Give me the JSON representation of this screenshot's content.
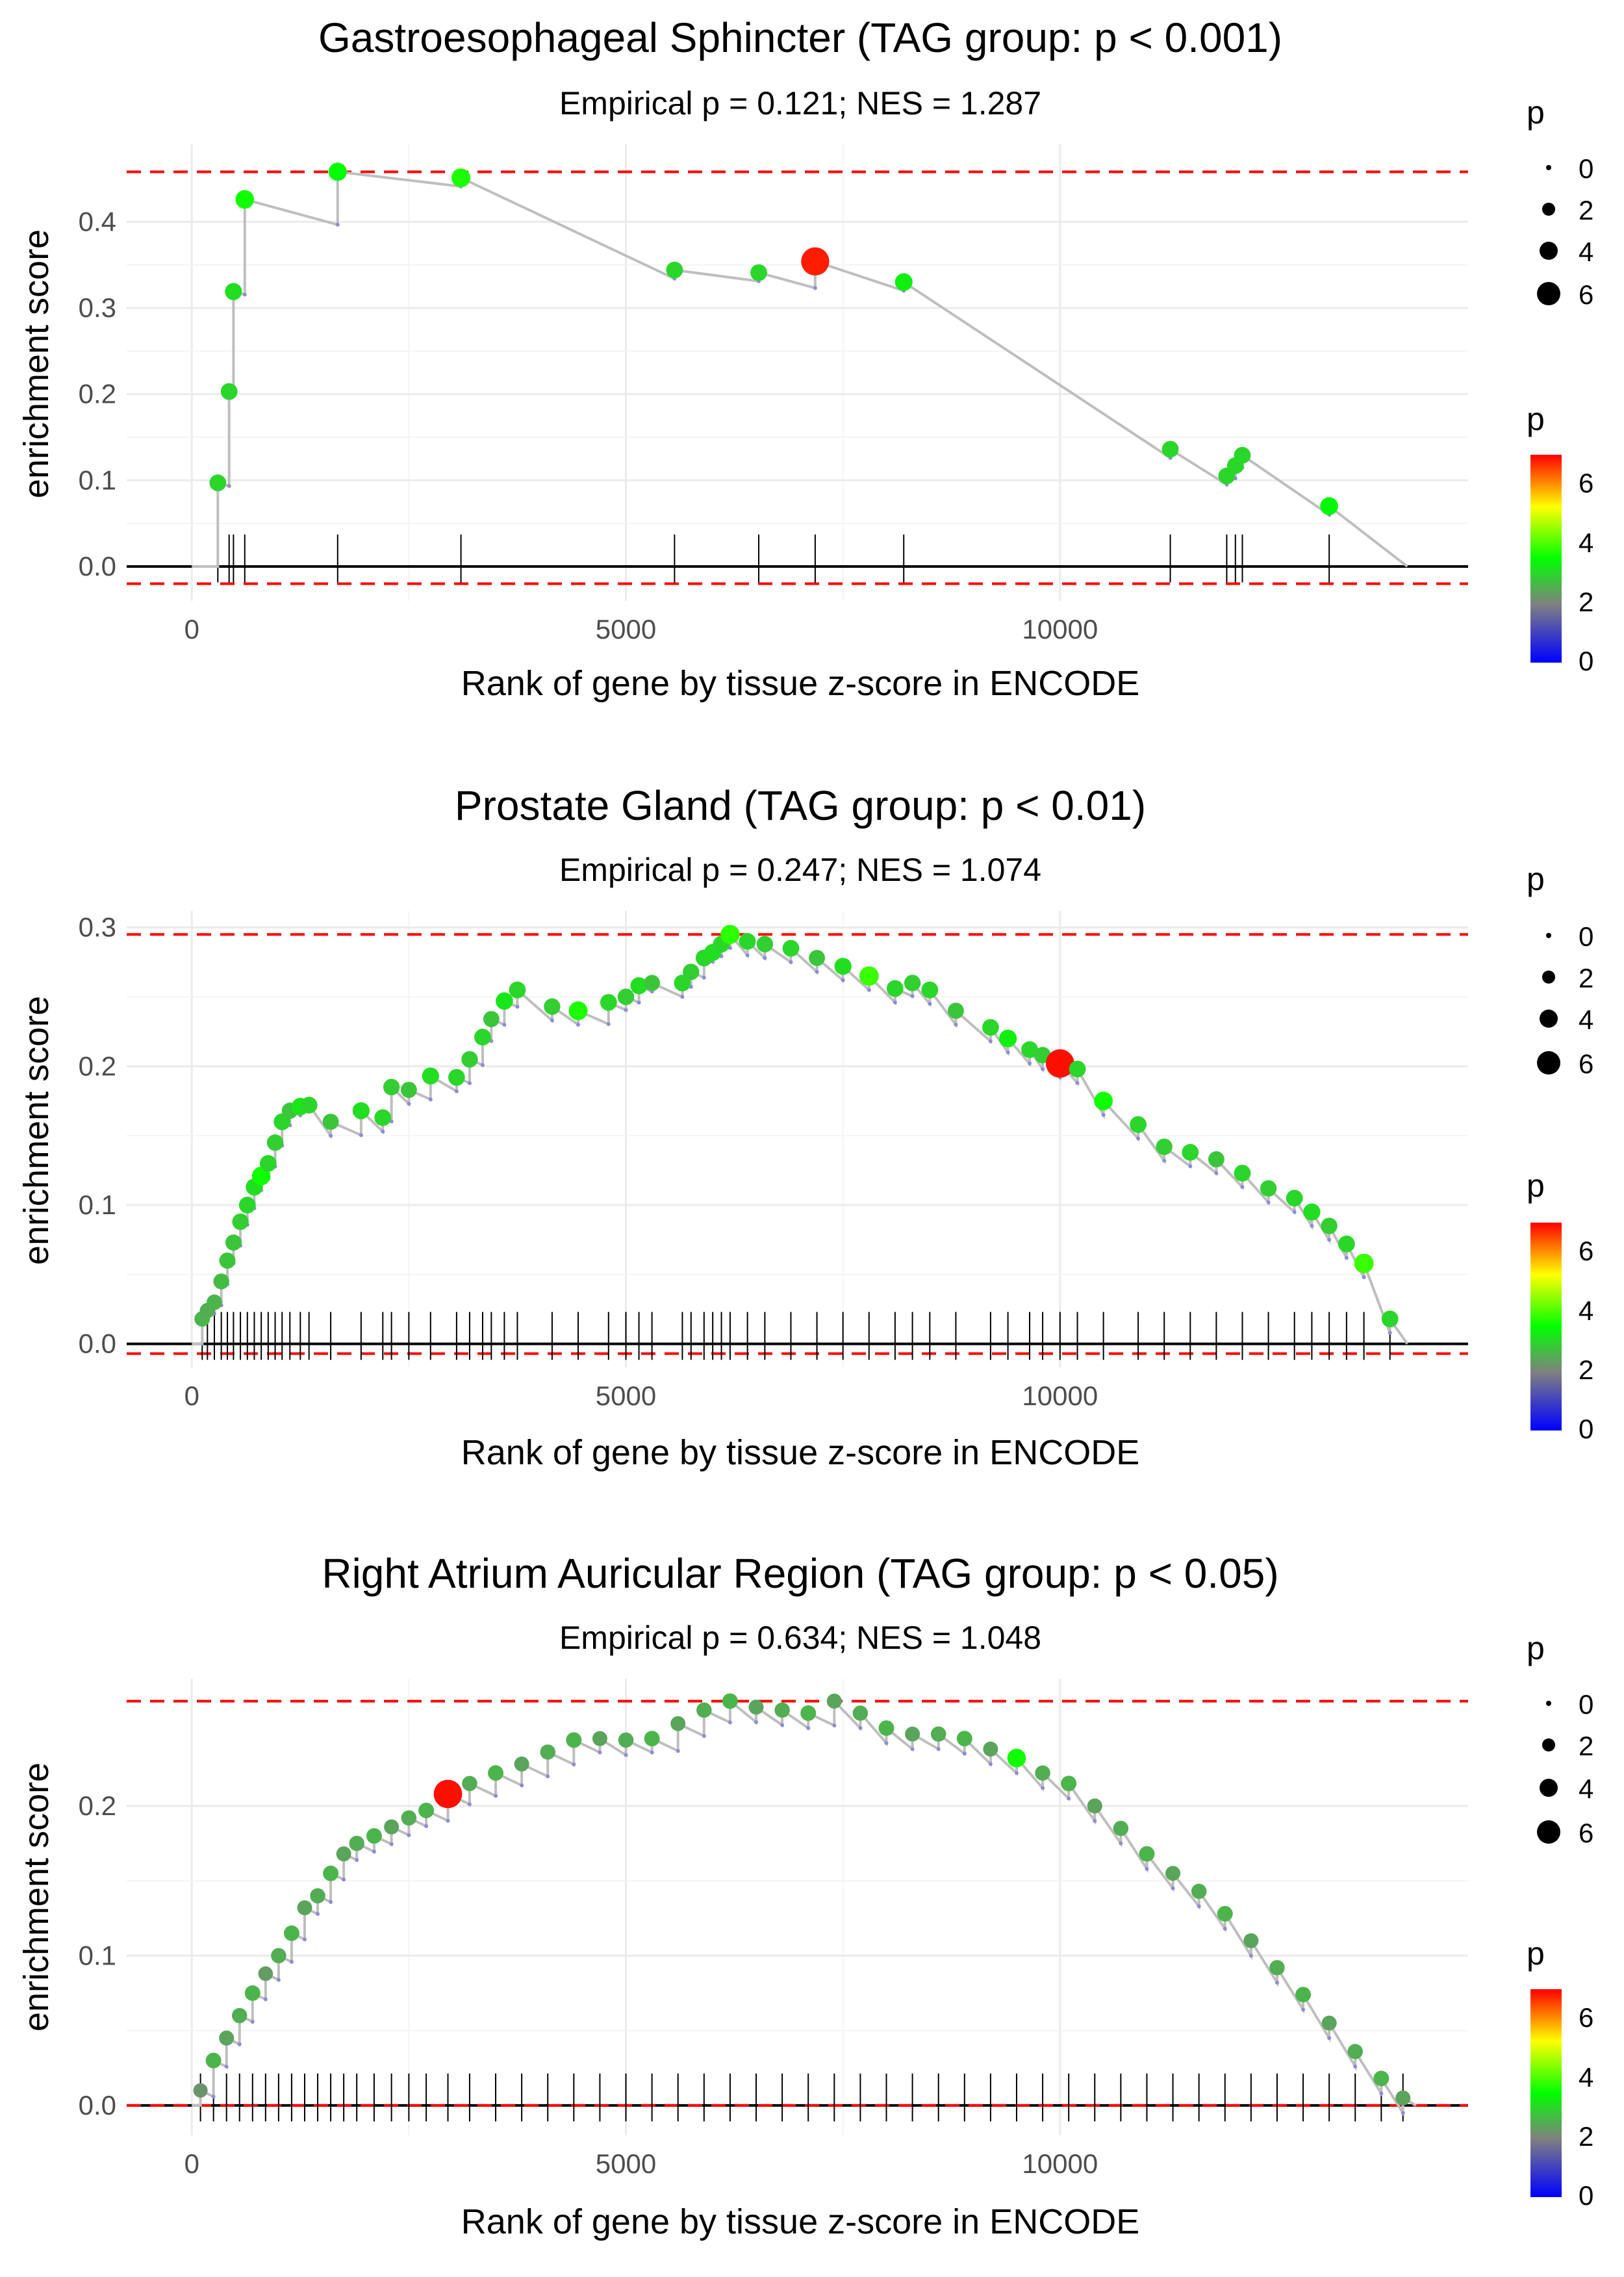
{
  "chart_data": [
    {
      "type": "line",
      "title": "Gastroesophageal Sphincter (TAG group: p < 0.001)",
      "subtitle": "Empirical p = 0.121; NES = 1.287",
      "xlabel": "Rank of gene by tissue z-score in ENCODE",
      "ylabel": "enrichment score",
      "xlim": [
        -750,
        14700
      ],
      "ylim": [
        -0.04,
        0.49
      ],
      "x_ticks": [
        0,
        5000,
        10000
      ],
      "x_tick_labels": [
        "0",
        "5000",
        "10000"
      ],
      "y_ticks": [
        0.0,
        0.1,
        0.2,
        0.3,
        0.4
      ],
      "y_tick_labels": [
        "0.0",
        "0.1",
        "0.2",
        "0.3",
        "0.4"
      ],
      "threshold_max": 0.458,
      "threshold_min": -0.02,
      "hits": [
        {
          "x": 300,
          "es": 0.097,
          "p": 3.0
        },
        {
          "x": 430,
          "es": 0.203,
          "p": 3.0
        },
        {
          "x": 480,
          "es": 0.319,
          "p": 3.1
        },
        {
          "x": 610,
          "es": 0.426,
          "p": 3.6
        },
        {
          "x": 1680,
          "es": 0.458,
          "p": 3.5
        },
        {
          "x": 3100,
          "es": 0.451,
          "p": 3.7
        },
        {
          "x": 5560,
          "es": 0.344,
          "p": 3.0
        },
        {
          "x": 6530,
          "es": 0.341,
          "p": 3.0
        },
        {
          "x": 7180,
          "es": 0.354,
          "p": 6.8
        },
        {
          "x": 8200,
          "es": 0.33,
          "p": 3.3
        },
        {
          "x": 11270,
          "es": 0.136,
          "p": 3.0
        },
        {
          "x": 11920,
          "es": 0.105,
          "p": 3.0
        },
        {
          "x": 12020,
          "es": 0.117,
          "p": 3.0
        },
        {
          "x": 12100,
          "es": 0.129,
          "p": 3.0
        },
        {
          "x": 13100,
          "es": 0.07,
          "p": 3.4
        }
      ],
      "end_point": {
        "x": 14000,
        "es": 0.0
      },
      "legend": {
        "size_title": "p",
        "size_values": [
          "0",
          "2",
          "4",
          "6"
        ],
        "color_title": "p",
        "color_values": [
          "0",
          "2",
          "4",
          "6"
        ],
        "color_stops": [
          "#0000FF",
          "#808080",
          "#00FF00",
          "#FFFF00",
          "#FF0000"
        ],
        "color_range": [
          0,
          7
        ]
      }
    },
    {
      "type": "line",
      "title": "Prostate Gland (TAG group: p < 0.01)",
      "subtitle": "Empirical p = 0.247; NES = 1.074",
      "xlabel": "Rank of gene by tissue z-score in ENCODE",
      "ylabel": "enrichment score",
      "xlim": [
        -750,
        14700
      ],
      "ylim": [
        -0.017,
        0.312
      ],
      "x_ticks": [
        0,
        5000,
        10000
      ],
      "x_tick_labels": [
        "0",
        "5000",
        "10000"
      ],
      "y_ticks": [
        0.0,
        0.1,
        0.2,
        0.3
      ],
      "y_tick_labels": [
        "0.0",
        "0.1",
        "0.2",
        "0.3"
      ],
      "threshold_max": 0.295,
      "threshold_min": -0.007,
      "hits": [
        {
          "x": 120,
          "es": 0.018,
          "p": 2.6
        },
        {
          "x": 180,
          "es": 0.024,
          "p": 2.5
        },
        {
          "x": 260,
          "es": 0.03,
          "p": 2.6
        },
        {
          "x": 340,
          "es": 0.045,
          "p": 2.7
        },
        {
          "x": 410,
          "es": 0.06,
          "p": 2.8
        },
        {
          "x": 480,
          "es": 0.073,
          "p": 2.8
        },
        {
          "x": 560,
          "es": 0.088,
          "p": 2.9
        },
        {
          "x": 640,
          "es": 0.1,
          "p": 3.0
        },
        {
          "x": 720,
          "es": 0.113,
          "p": 3.1
        },
        {
          "x": 800,
          "es": 0.121,
          "p": 3.6
        },
        {
          "x": 880,
          "es": 0.13,
          "p": 3.0
        },
        {
          "x": 960,
          "es": 0.145,
          "p": 2.9
        },
        {
          "x": 1040,
          "es": 0.16,
          "p": 3.0
        },
        {
          "x": 1130,
          "es": 0.168,
          "p": 2.8
        },
        {
          "x": 1250,
          "es": 0.171,
          "p": 3.2
        },
        {
          "x": 1350,
          "es": 0.172,
          "p": 3.0
        },
        {
          "x": 1600,
          "es": 0.16,
          "p": 2.8
        },
        {
          "x": 1950,
          "es": 0.168,
          "p": 3.1
        },
        {
          "x": 2200,
          "es": 0.163,
          "p": 3.0
        },
        {
          "x": 2300,
          "es": 0.185,
          "p": 2.9
        },
        {
          "x": 2500,
          "es": 0.183,
          "p": 2.8
        },
        {
          "x": 2750,
          "es": 0.193,
          "p": 3.1
        },
        {
          "x": 3050,
          "es": 0.192,
          "p": 3.0
        },
        {
          "x": 3200,
          "es": 0.205,
          "p": 2.9
        },
        {
          "x": 3350,
          "es": 0.221,
          "p": 3.0
        },
        {
          "x": 3450,
          "es": 0.234,
          "p": 2.8
        },
        {
          "x": 3600,
          "es": 0.247,
          "p": 3.2
        },
        {
          "x": 3750,
          "es": 0.255,
          "p": 3.0
        },
        {
          "x": 4150,
          "es": 0.243,
          "p": 2.9
        },
        {
          "x": 4450,
          "es": 0.24,
          "p": 3.7
        },
        {
          "x": 4800,
          "es": 0.246,
          "p": 3.0
        },
        {
          "x": 5000,
          "es": 0.25,
          "p": 2.9
        },
        {
          "x": 5150,
          "es": 0.258,
          "p": 3.1
        },
        {
          "x": 5300,
          "es": 0.26,
          "p": 2.8
        },
        {
          "x": 5650,
          "es": 0.26,
          "p": 3.0
        },
        {
          "x": 5750,
          "es": 0.268,
          "p": 2.9
        },
        {
          "x": 5900,
          "es": 0.278,
          "p": 3.0
        },
        {
          "x": 6000,
          "es": 0.282,
          "p": 3.1
        },
        {
          "x": 6100,
          "es": 0.288,
          "p": 3.0
        },
        {
          "x": 6200,
          "es": 0.295,
          "p": 3.8
        },
        {
          "x": 6400,
          "es": 0.29,
          "p": 3.0
        },
        {
          "x": 6600,
          "es": 0.288,
          "p": 2.9
        },
        {
          "x": 6900,
          "es": 0.285,
          "p": 3.0
        },
        {
          "x": 7200,
          "es": 0.278,
          "p": 2.8
        },
        {
          "x": 7500,
          "es": 0.272,
          "p": 3.1
        },
        {
          "x": 7800,
          "es": 0.265,
          "p": 3.9
        },
        {
          "x": 8100,
          "es": 0.256,
          "p": 3.0
        },
        {
          "x": 8300,
          "es": 0.26,
          "p": 2.9
        },
        {
          "x": 8500,
          "es": 0.255,
          "p": 3.0
        },
        {
          "x": 8800,
          "es": 0.24,
          "p": 2.8
        },
        {
          "x": 9200,
          "es": 0.228,
          "p": 3.0
        },
        {
          "x": 9400,
          "es": 0.22,
          "p": 3.3
        },
        {
          "x": 9650,
          "es": 0.212,
          "p": 3.0
        },
        {
          "x": 9800,
          "es": 0.208,
          "p": 2.9
        },
        {
          "x": 10000,
          "es": 0.202,
          "p": 6.9
        },
        {
          "x": 10200,
          "es": 0.198,
          "p": 3.0
        },
        {
          "x": 10500,
          "es": 0.175,
          "p": 3.6
        },
        {
          "x": 10900,
          "es": 0.158,
          "p": 3.0
        },
        {
          "x": 11200,
          "es": 0.142,
          "p": 2.9
        },
        {
          "x": 11500,
          "es": 0.138,
          "p": 3.0
        },
        {
          "x": 11800,
          "es": 0.133,
          "p": 2.8
        },
        {
          "x": 12100,
          "es": 0.123,
          "p": 3.0
        },
        {
          "x": 12400,
          "es": 0.112,
          "p": 2.9
        },
        {
          "x": 12700,
          "es": 0.105,
          "p": 3.0
        },
        {
          "x": 12900,
          "es": 0.095,
          "p": 3.1
        },
        {
          "x": 13100,
          "es": 0.085,
          "p": 2.9
        },
        {
          "x": 13300,
          "es": 0.072,
          "p": 3.0
        },
        {
          "x": 13500,
          "es": 0.058,
          "p": 3.9
        },
        {
          "x": 13800,
          "es": 0.018,
          "p": 3.0
        }
      ],
      "end_point": {
        "x": 14000,
        "es": 0.0
      },
      "legend": {
        "size_title": "p",
        "size_values": [
          "0",
          "2",
          "4",
          "6"
        ],
        "color_title": "p",
        "color_values": [
          "0",
          "2",
          "4",
          "6"
        ],
        "color_stops": [
          "#0000FF",
          "#808080",
          "#00FF00",
          "#FFFF00",
          "#FF0000"
        ],
        "color_range": [
          0,
          7
        ]
      }
    },
    {
      "type": "line",
      "title": "Right Atrium Auricular Region (TAG group: p < 0.05)",
      "subtitle": "Empirical p = 0.634; NES = 1.048",
      "xlabel": "Rank of gene by tissue z-score in ENCODE",
      "ylabel": "enrichment score",
      "xlim": [
        -750,
        14700
      ],
      "ylim": [
        -0.02,
        0.285
      ],
      "x_ticks": [
        0,
        5000,
        10000
      ],
      "x_tick_labels": [
        "0",
        "5000",
        "10000"
      ],
      "y_ticks": [
        0.0,
        0.1,
        0.2
      ],
      "y_tick_labels": [
        "0.0",
        "0.1",
        "0.2"
      ],
      "threshold_max": 0.27,
      "threshold_min": 0.0,
      "hits": [
        {
          "x": 100,
          "es": 0.01,
          "p": 2.2
        },
        {
          "x": 250,
          "es": 0.03,
          "p": 2.6
        },
        {
          "x": 400,
          "es": 0.045,
          "p": 2.4
        },
        {
          "x": 550,
          "es": 0.06,
          "p": 2.5
        },
        {
          "x": 700,
          "es": 0.075,
          "p": 2.6
        },
        {
          "x": 850,
          "es": 0.088,
          "p": 2.3
        },
        {
          "x": 1000,
          "es": 0.1,
          "p": 2.5
        },
        {
          "x": 1150,
          "es": 0.115,
          "p": 2.6
        },
        {
          "x": 1300,
          "es": 0.132,
          "p": 2.4
        },
        {
          "x": 1450,
          "es": 0.14,
          "p": 2.5
        },
        {
          "x": 1600,
          "es": 0.155,
          "p": 2.6
        },
        {
          "x": 1750,
          "es": 0.168,
          "p": 2.4
        },
        {
          "x": 1900,
          "es": 0.175,
          "p": 2.5
        },
        {
          "x": 2100,
          "es": 0.18,
          "p": 2.6
        },
        {
          "x": 2300,
          "es": 0.186,
          "p": 2.4
        },
        {
          "x": 2500,
          "es": 0.192,
          "p": 2.5
        },
        {
          "x": 2700,
          "es": 0.197,
          "p": 2.6
        },
        {
          "x": 2950,
          "es": 0.208,
          "p": 6.9
        },
        {
          "x": 3200,
          "es": 0.215,
          "p": 2.5
        },
        {
          "x": 3500,
          "es": 0.222,
          "p": 2.6
        },
        {
          "x": 3800,
          "es": 0.228,
          "p": 2.4
        },
        {
          "x": 4100,
          "es": 0.236,
          "p": 2.5
        },
        {
          "x": 4400,
          "es": 0.244,
          "p": 2.6
        },
        {
          "x": 4700,
          "es": 0.245,
          "p": 2.4
        },
        {
          "x": 5000,
          "es": 0.244,
          "p": 2.5
        },
        {
          "x": 5300,
          "es": 0.245,
          "p": 2.6
        },
        {
          "x": 5600,
          "es": 0.255,
          "p": 2.4
        },
        {
          "x": 5900,
          "es": 0.264,
          "p": 2.5
        },
        {
          "x": 6200,
          "es": 0.27,
          "p": 2.6
        },
        {
          "x": 6500,
          "es": 0.266,
          "p": 2.4
        },
        {
          "x": 6800,
          "es": 0.264,
          "p": 2.5
        },
        {
          "x": 7100,
          "es": 0.262,
          "p": 2.6
        },
        {
          "x": 7400,
          "es": 0.27,
          "p": 2.4
        },
        {
          "x": 7700,
          "es": 0.262,
          "p": 2.5
        },
        {
          "x": 8000,
          "es": 0.252,
          "p": 2.6
        },
        {
          "x": 8300,
          "es": 0.248,
          "p": 2.4
        },
        {
          "x": 8600,
          "es": 0.248,
          "p": 2.5
        },
        {
          "x": 8900,
          "es": 0.245,
          "p": 2.6
        },
        {
          "x": 9200,
          "es": 0.238,
          "p": 2.4
        },
        {
          "x": 9500,
          "es": 0.232,
          "p": 3.6
        },
        {
          "x": 9800,
          "es": 0.222,
          "p": 2.5
        },
        {
          "x": 10100,
          "es": 0.215,
          "p": 2.6
        },
        {
          "x": 10400,
          "es": 0.2,
          "p": 2.4
        },
        {
          "x": 10700,
          "es": 0.185,
          "p": 2.5
        },
        {
          "x": 11000,
          "es": 0.168,
          "p": 2.6
        },
        {
          "x": 11300,
          "es": 0.155,
          "p": 2.4
        },
        {
          "x": 11600,
          "es": 0.143,
          "p": 2.5
        },
        {
          "x": 11900,
          "es": 0.128,
          "p": 2.6
        },
        {
          "x": 12200,
          "es": 0.11,
          "p": 2.4
        },
        {
          "x": 12500,
          "es": 0.092,
          "p": 2.5
        },
        {
          "x": 12800,
          "es": 0.074,
          "p": 2.6
        },
        {
          "x": 13100,
          "es": 0.055,
          "p": 2.4
        },
        {
          "x": 13400,
          "es": 0.036,
          "p": 2.5
        },
        {
          "x": 13700,
          "es": 0.018,
          "p": 2.6
        },
        {
          "x": 13950,
          "es": 0.005,
          "p": 2.4
        }
      ],
      "end_point": {
        "x": 14100,
        "es": 0.0
      },
      "legend": {
        "size_title": "p",
        "size_values": [
          "0",
          "2",
          "4",
          "6"
        ],
        "color_title": "p",
        "color_values": [
          "0",
          "2",
          "4",
          "6"
        ],
        "color_stops": [
          "#0000FF",
          "#808080",
          "#00FF00",
          "#FFFF00",
          "#FF0000"
        ],
        "color_range": [
          0,
          7
        ]
      }
    }
  ]
}
